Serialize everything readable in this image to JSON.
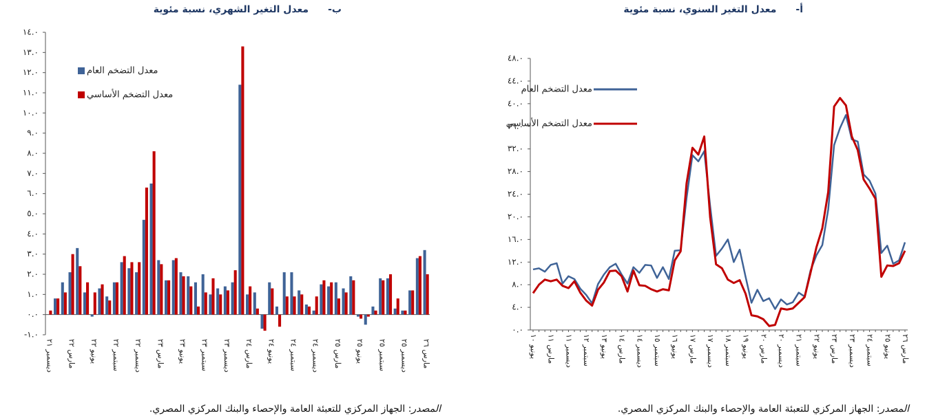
{
  "chart_data": [
    {
      "type": "line",
      "title_prefix": "أ-",
      "title": "معدل التغير السنوي، نسبة مئوية",
      "source_label": "المصدر",
      "source": ": الجهاز المركزي للتعبئة العامة والإحصاء والبنك المركزي المصري.",
      "categories": [
        "يونيو ١٠",
        null,
        null,
        "مارس ١١",
        null,
        null,
        "ديسمبر ١١",
        null,
        null,
        "سبتمبر ١٢",
        null,
        null,
        "يونيو ١٣",
        null,
        null,
        "مارس ١٤",
        null,
        null,
        "ديسمبر ١٤",
        null,
        null,
        "سبتمبر ١٥",
        null,
        null,
        "يونيو ١٦",
        null,
        null,
        "مارس ١٧",
        null,
        null,
        "ديسمبر ١٧",
        null,
        null,
        "سبتمبر ١٨",
        null,
        null,
        "يونيو ١٩",
        null,
        null,
        "مارس ٢٠",
        null,
        null,
        "ديسمبر ٢٠",
        null,
        null,
        "سبتمبر ٢١",
        null,
        null,
        "يونيو ٢٢",
        null,
        null,
        "مارس ٢٣",
        null,
        null,
        "ديسمبر ٢٣",
        null,
        null,
        "سبتمبر ٢٤",
        null,
        null,
        "يونيو ٢٥",
        null,
        null,
        "مارس ٢٦"
      ],
      "series": [
        {
          "name": "معدل التضخم العام",
          "color": "#3f6397",
          "values": [
            10.7,
            10.9,
            10.3,
            11.5,
            11.8,
            8.2,
            9.5,
            9.0,
            7.3,
            6.2,
            4.7,
            8.1,
            9.8,
            11.1,
            11.7,
            9.8,
            8.2,
            11.1,
            10.1,
            11.5,
            11.4,
            9.2,
            11.1,
            9.0,
            14.0,
            14.1,
            23.3,
            30.9,
            29.8,
            31.6,
            21.9,
            13.1,
            14.4,
            16.0,
            12.0,
            14.2,
            9.4,
            4.8,
            7.1,
            5.1,
            5.6,
            3.7,
            5.4,
            4.5,
            4.9,
            6.6,
            5.9,
            10.5,
            13.2,
            15.0,
            21.3,
            32.7,
            35.7,
            38.0,
            33.7,
            33.3,
            27.5,
            26.4,
            24.1,
            13.6,
            14.9,
            11.7,
            12.3,
            15.5
          ]
        },
        {
          "name": "معدل التضخم الأساسي",
          "color": "#c00000",
          "values": [
            6.5,
            8.0,
            8.9,
            8.6,
            8.9,
            7.8,
            7.4,
            8.6,
            6.6,
            5.2,
            4.3,
            7.1,
            8.4,
            10.4,
            10.5,
            9.5,
            6.8,
            10.5,
            7.9,
            7.8,
            7.2,
            6.8,
            7.2,
            7.0,
            12.3,
            13.9,
            25.9,
            32.2,
            31.0,
            34.2,
            19.9,
            11.6,
            10.9,
            8.9,
            8.3,
            8.8,
            6.4,
            2.6,
            2.4,
            1.9,
            0.7,
            0.9,
            3.8,
            3.6,
            3.8,
            4.8,
            5.8,
            10.1,
            14.6,
            18.0,
            24.4,
            39.5,
            41.0,
            39.7,
            34.2,
            31.8,
            26.6,
            25.0,
            23.2,
            9.4,
            11.4,
            11.3,
            11.8,
            14.0
          ]
        }
      ],
      "ylim": [
        0,
        48
      ],
      "yticks": [
        {
          "value": 0,
          "label": "٠.٠"
        },
        {
          "value": 4,
          "label": "٤.٠"
        },
        {
          "value": 8,
          "label": "٨.٠"
        },
        {
          "value": 12,
          "label": "١٢.٠"
        },
        {
          "value": 16,
          "label": "١٦.٠"
        },
        {
          "value": 20,
          "label": "٢٠.٠"
        },
        {
          "value": 24,
          "label": "٢٤.٠"
        },
        {
          "value": 28,
          "label": "٢٨.٠"
        },
        {
          "value": 32,
          "label": "٣٢.٠"
        },
        {
          "value": 36,
          "label": "٣٦.٠"
        },
        {
          "value": 40,
          "label": "٤٠.٠"
        },
        {
          "value": 44,
          "label": "٤٤.٠"
        },
        {
          "value": 48,
          "label": "٤٨.٠"
        }
      ],
      "grid": false
    },
    {
      "type": "bar",
      "title_prefix": "ب-",
      "title": "معدل التغير الشهري، نسبة مئوية",
      "source_label": "المصدر",
      "source": ": الجهاز المركزي للتعبئة العامة والإحصاء والبنك المركزي المصري.",
      "categories": [
        "ديسمبر ٢١",
        null,
        null,
        "مارس ٢٢",
        null,
        null,
        "يونيو ٢٢",
        null,
        null,
        "سبتمبر ٢٢",
        null,
        null,
        "ديسمبر ٢٢",
        null,
        null,
        "مارس ٢٣",
        null,
        null,
        "يونيو ٢٣",
        null,
        null,
        "سبتمبر ٢٣",
        null,
        null,
        "ديسمبر ٢٣",
        null,
        null,
        "مارس ٢٤",
        null,
        null,
        "يونيو ٢٤",
        null,
        null,
        "سبتمبر ٢٤",
        null,
        null,
        "ديسمبر ٢٤",
        null,
        null,
        "مارس ٢٥",
        null,
        null,
        "يونيو ٢٥",
        null,
        null,
        "سبتمبر ٢٥",
        null,
        null,
        "ديسمبر ٢٥",
        null,
        null,
        "مارس ٢٦"
      ],
      "series": [
        {
          "name": "معدل التضخم العام",
          "color": "#3f6397",
          "values": [
            0.0,
            0.8,
            1.6,
            2.1,
            3.3,
            1.1,
            -0.1,
            1.3,
            0.9,
            1.6,
            2.6,
            2.3,
            2.1,
            4.7,
            6.5,
            2.7,
            1.7,
            2.7,
            2.1,
            1.9,
            1.6,
            2.0,
            1.0,
            1.3,
            1.4,
            1.6,
            11.4,
            1.0,
            1.1,
            -0.7,
            1.6,
            0.4,
            2.1,
            2.1,
            1.2,
            0.5,
            0.2,
            1.5,
            1.4,
            1.6,
            1.3,
            1.9,
            -0.1,
            -0.5,
            0.4,
            1.8,
            1.8,
            0.3,
            0.2,
            1.2,
            2.8,
            3.2
          ]
        },
        {
          "name": "معدل التضخم الأساسي",
          "color": "#c00000",
          "values": [
            0.2,
            0.8,
            1.1,
            3.0,
            2.4,
            1.6,
            1.1,
            1.5,
            0.7,
            1.6,
            2.9,
            2.6,
            2.6,
            6.3,
            8.1,
            2.5,
            1.7,
            2.8,
            1.9,
            1.4,
            0.4,
            1.1,
            1.8,
            1.0,
            1.2,
            2.2,
            13.3,
            1.4,
            0.3,
            -0.8,
            1.3,
            -0.6,
            0.9,
            0.9,
            1.0,
            0.4,
            0.9,
            1.7,
            1.6,
            0.8,
            1.1,
            1.7,
            -0.2,
            -0.1,
            0.2,
            1.7,
            2.0,
            0.8,
            0.2,
            1.2,
            2.9,
            2.0
          ]
        }
      ],
      "ylim": [
        -1,
        14
      ],
      "yticks": [
        {
          "value": -1,
          "label": "-١.٠"
        },
        {
          "value": 0,
          "label": "٠.٠"
        },
        {
          "value": 1,
          "label": "١.٠"
        },
        {
          "value": 2,
          "label": "٢.٠"
        },
        {
          "value": 3,
          "label": "٣.٠"
        },
        {
          "value": 4,
          "label": "٤.٠"
        },
        {
          "value": 5,
          "label": "٥.٠"
        },
        {
          "value": 6,
          "label": "٦.٠"
        },
        {
          "value": 7,
          "label": "٧.٠"
        },
        {
          "value": 8,
          "label": "٨.٠"
        },
        {
          "value": 9,
          "label": "٩.٠"
        },
        {
          "value": 10,
          "label": "١٠.٠"
        },
        {
          "value": 11,
          "label": "١١.٠"
        },
        {
          "value": 12,
          "label": "١٢.٠"
        },
        {
          "value": 13,
          "label": "١٣.٠"
        },
        {
          "value": 14,
          "label": "١٤.٠"
        }
      ],
      "grid": false
    }
  ]
}
